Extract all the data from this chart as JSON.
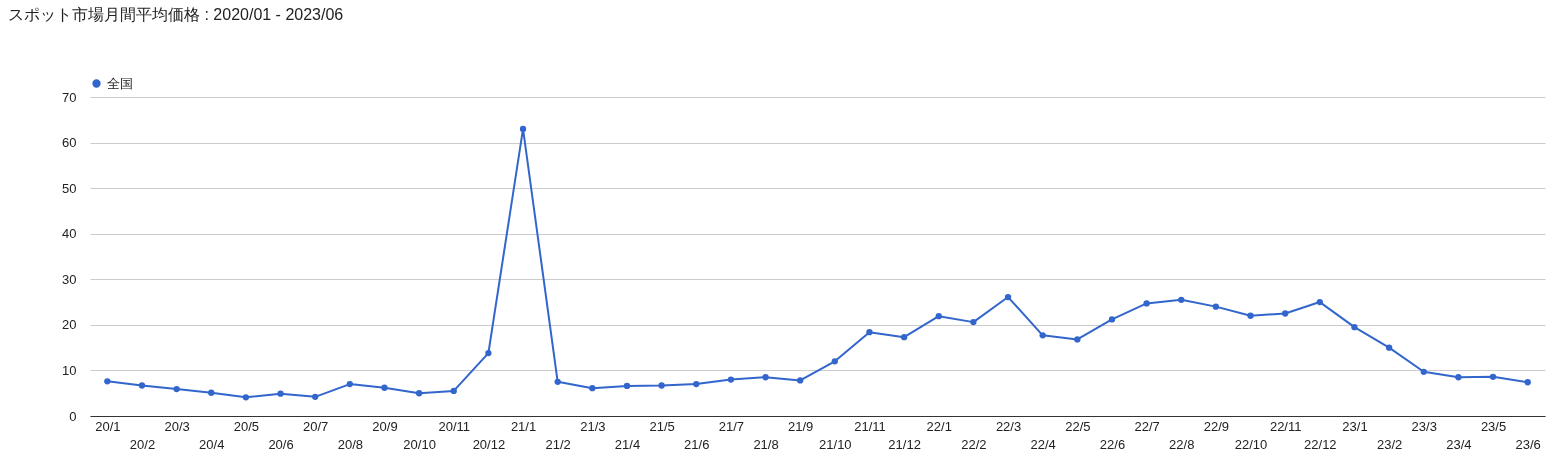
{
  "chart_data": {
    "type": "line",
    "title": "スポット市場月間平均価格 : 2020/01 - 2023/06",
    "categories": [
      "20/1",
      "20/2",
      "20/3",
      "20/4",
      "20/5",
      "20/6",
      "20/7",
      "20/8",
      "20/9",
      "20/10",
      "20/11",
      "20/12",
      "21/1",
      "21/2",
      "21/3",
      "21/4",
      "21/5",
      "21/6",
      "21/7",
      "21/8",
      "21/9",
      "21/10",
      "21/11",
      "21/12",
      "22/1",
      "22/2",
      "22/3",
      "22/4",
      "22/5",
      "22/6",
      "22/7",
      "22/8",
      "22/9",
      "22/10",
      "22/11",
      "22/12",
      "23/1",
      "23/2",
      "23/3",
      "23/4",
      "23/5",
      "23/6"
    ],
    "series": [
      {
        "name": "全国",
        "color": "#3366cc",
        "values": [
          7.6,
          6.7,
          5.9,
          5.1,
          4.1,
          4.9,
          4.2,
          7.0,
          6.2,
          5.0,
          5.5,
          13.8,
          63.0,
          7.5,
          6.1,
          6.6,
          6.7,
          7.0,
          8.0,
          8.5,
          7.8,
          12.0,
          18.4,
          17.3,
          21.9,
          20.6,
          26.1,
          17.7,
          16.8,
          21.2,
          24.7,
          25.5,
          24.0,
          22.0,
          22.5,
          25.0,
          19.5,
          15.0,
          9.7,
          8.5,
          8.6,
          7.4
        ]
      }
    ],
    "ylim": [
      0,
      70
    ],
    "yticks": [
      0,
      10,
      20,
      30,
      40,
      50,
      60,
      70
    ],
    "grid": "y",
    "legend": "top left",
    "marker": "circle",
    "line_style": "solid"
  }
}
